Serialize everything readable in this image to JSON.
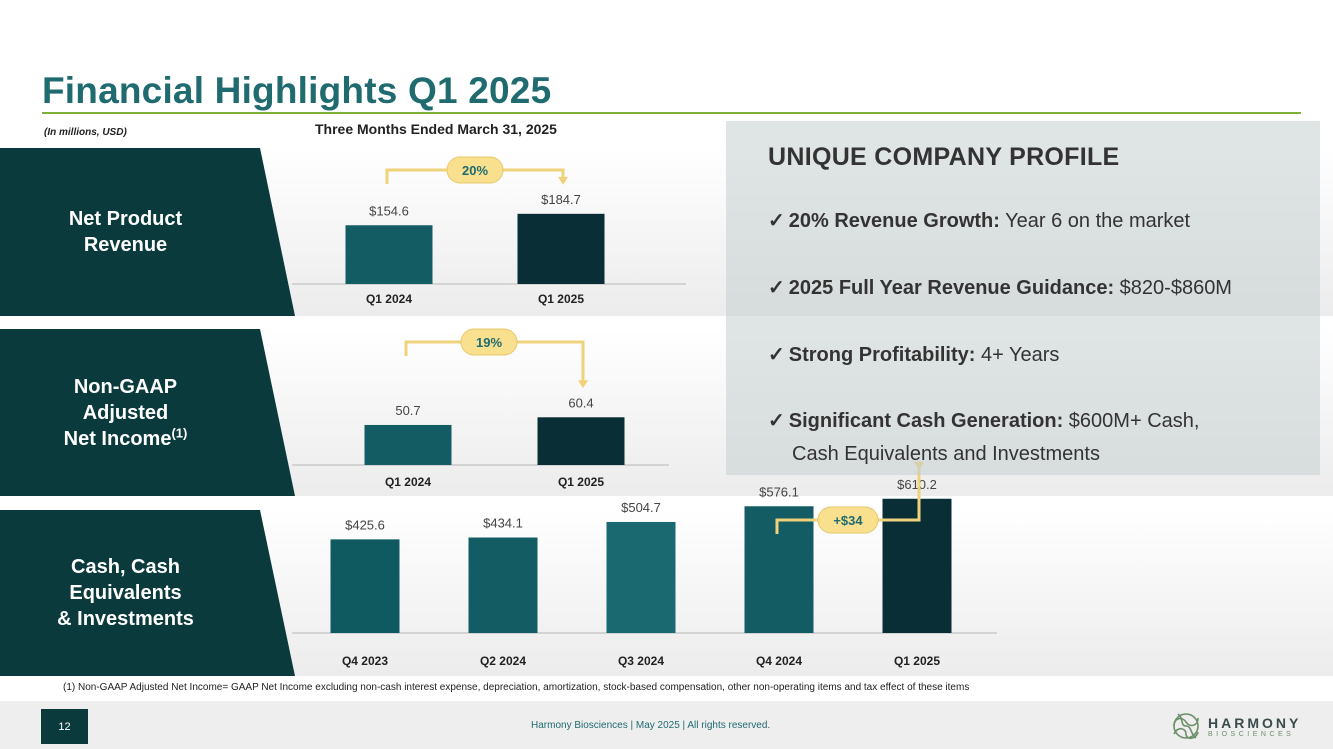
{
  "header": {
    "title": "Financial Highlights Q1 2025",
    "units_note": "(In millions, USD)",
    "period": "Three Months Ended March 31, 2025"
  },
  "rows": [
    {
      "label_lines": [
        "Net Product",
        "Revenue"
      ],
      "superscript": ""
    },
    {
      "label_lines": [
        "Non-GAAP",
        "Adjusted",
        "Net Income"
      ],
      "superscript": "(1)"
    },
    {
      "label_lines": [
        "Cash, Cash",
        "Equivalents",
        "& Investments"
      ],
      "superscript": ""
    }
  ],
  "chart_data": [
    {
      "type": "bar",
      "title": "Net Product Revenue",
      "categories": [
        "Q1 2024",
        "Q1 2025"
      ],
      "values": [
        154.6,
        184.7
      ],
      "value_labels": [
        "$154.6",
        "$184.7"
      ],
      "growth_label": "20%",
      "colors": [
        "#135c63",
        "#0a2e35"
      ]
    },
    {
      "type": "bar",
      "title": "Non-GAAP Adjusted Net Income",
      "categories": [
        "Q1 2024",
        "Q1 2025"
      ],
      "values": [
        50.7,
        60.4
      ],
      "value_labels": [
        "50.7",
        "60.4"
      ],
      "growth_label": "19%",
      "colors": [
        "#135c63",
        "#0a2e35"
      ]
    },
    {
      "type": "bar",
      "title": "Cash, Cash Equivalents & Investments",
      "categories": [
        "Q4 2023",
        "Q2 2024",
        "Q3 2024",
        "Q4 2024",
        "Q1 2025"
      ],
      "values": [
        425.6,
        434.1,
        504.7,
        576.1,
        610.2
      ],
      "value_labels": [
        "$425.6",
        "$434.1",
        "$504.7",
        "$576.1",
        "$610.2"
      ],
      "growth_label": "+$34",
      "colors": [
        "#0f5a60",
        "#135c63",
        "#1b6970",
        "#135c63",
        "#0a2e35"
      ]
    }
  ],
  "profile": {
    "title": "UNIQUE COMPANY PROFILE",
    "check": "✓",
    "items": [
      {
        "bold": "20% Revenue Growth:",
        "text": " Year 6 on the market"
      },
      {
        "bold": "2025 Full Year Revenue Guidance:",
        "text": " $820-$860M"
      },
      {
        "bold": "Strong Profitability:",
        "text": " 4+ Years"
      },
      {
        "bold": "Significant Cash Generation:",
        "text": " $600M+ Cash,",
        "text2": "Cash Equivalents and Investments"
      }
    ]
  },
  "footer": {
    "footnote": "(1) Non-GAAP Adjusted Net Income= GAAP Net Income excluding non-cash interest expense, depreciation, amortization, stock-based compensation, other non-operating items and tax effect of these items",
    "page_number": "12",
    "text": "Harmony Biosciences  | May 2025 | All rights reserved.",
    "logo_main": "HARMONY",
    "logo_sub": "BIOSCIENCES"
  },
  "colors": {
    "title": "#1f6b70",
    "accent_line": "#7fb03a",
    "label_bg": "#0b3a3d",
    "bracket": "#f0d27a",
    "badge_fill": "#f8e08f",
    "badge_text": "#1f6b70"
  }
}
